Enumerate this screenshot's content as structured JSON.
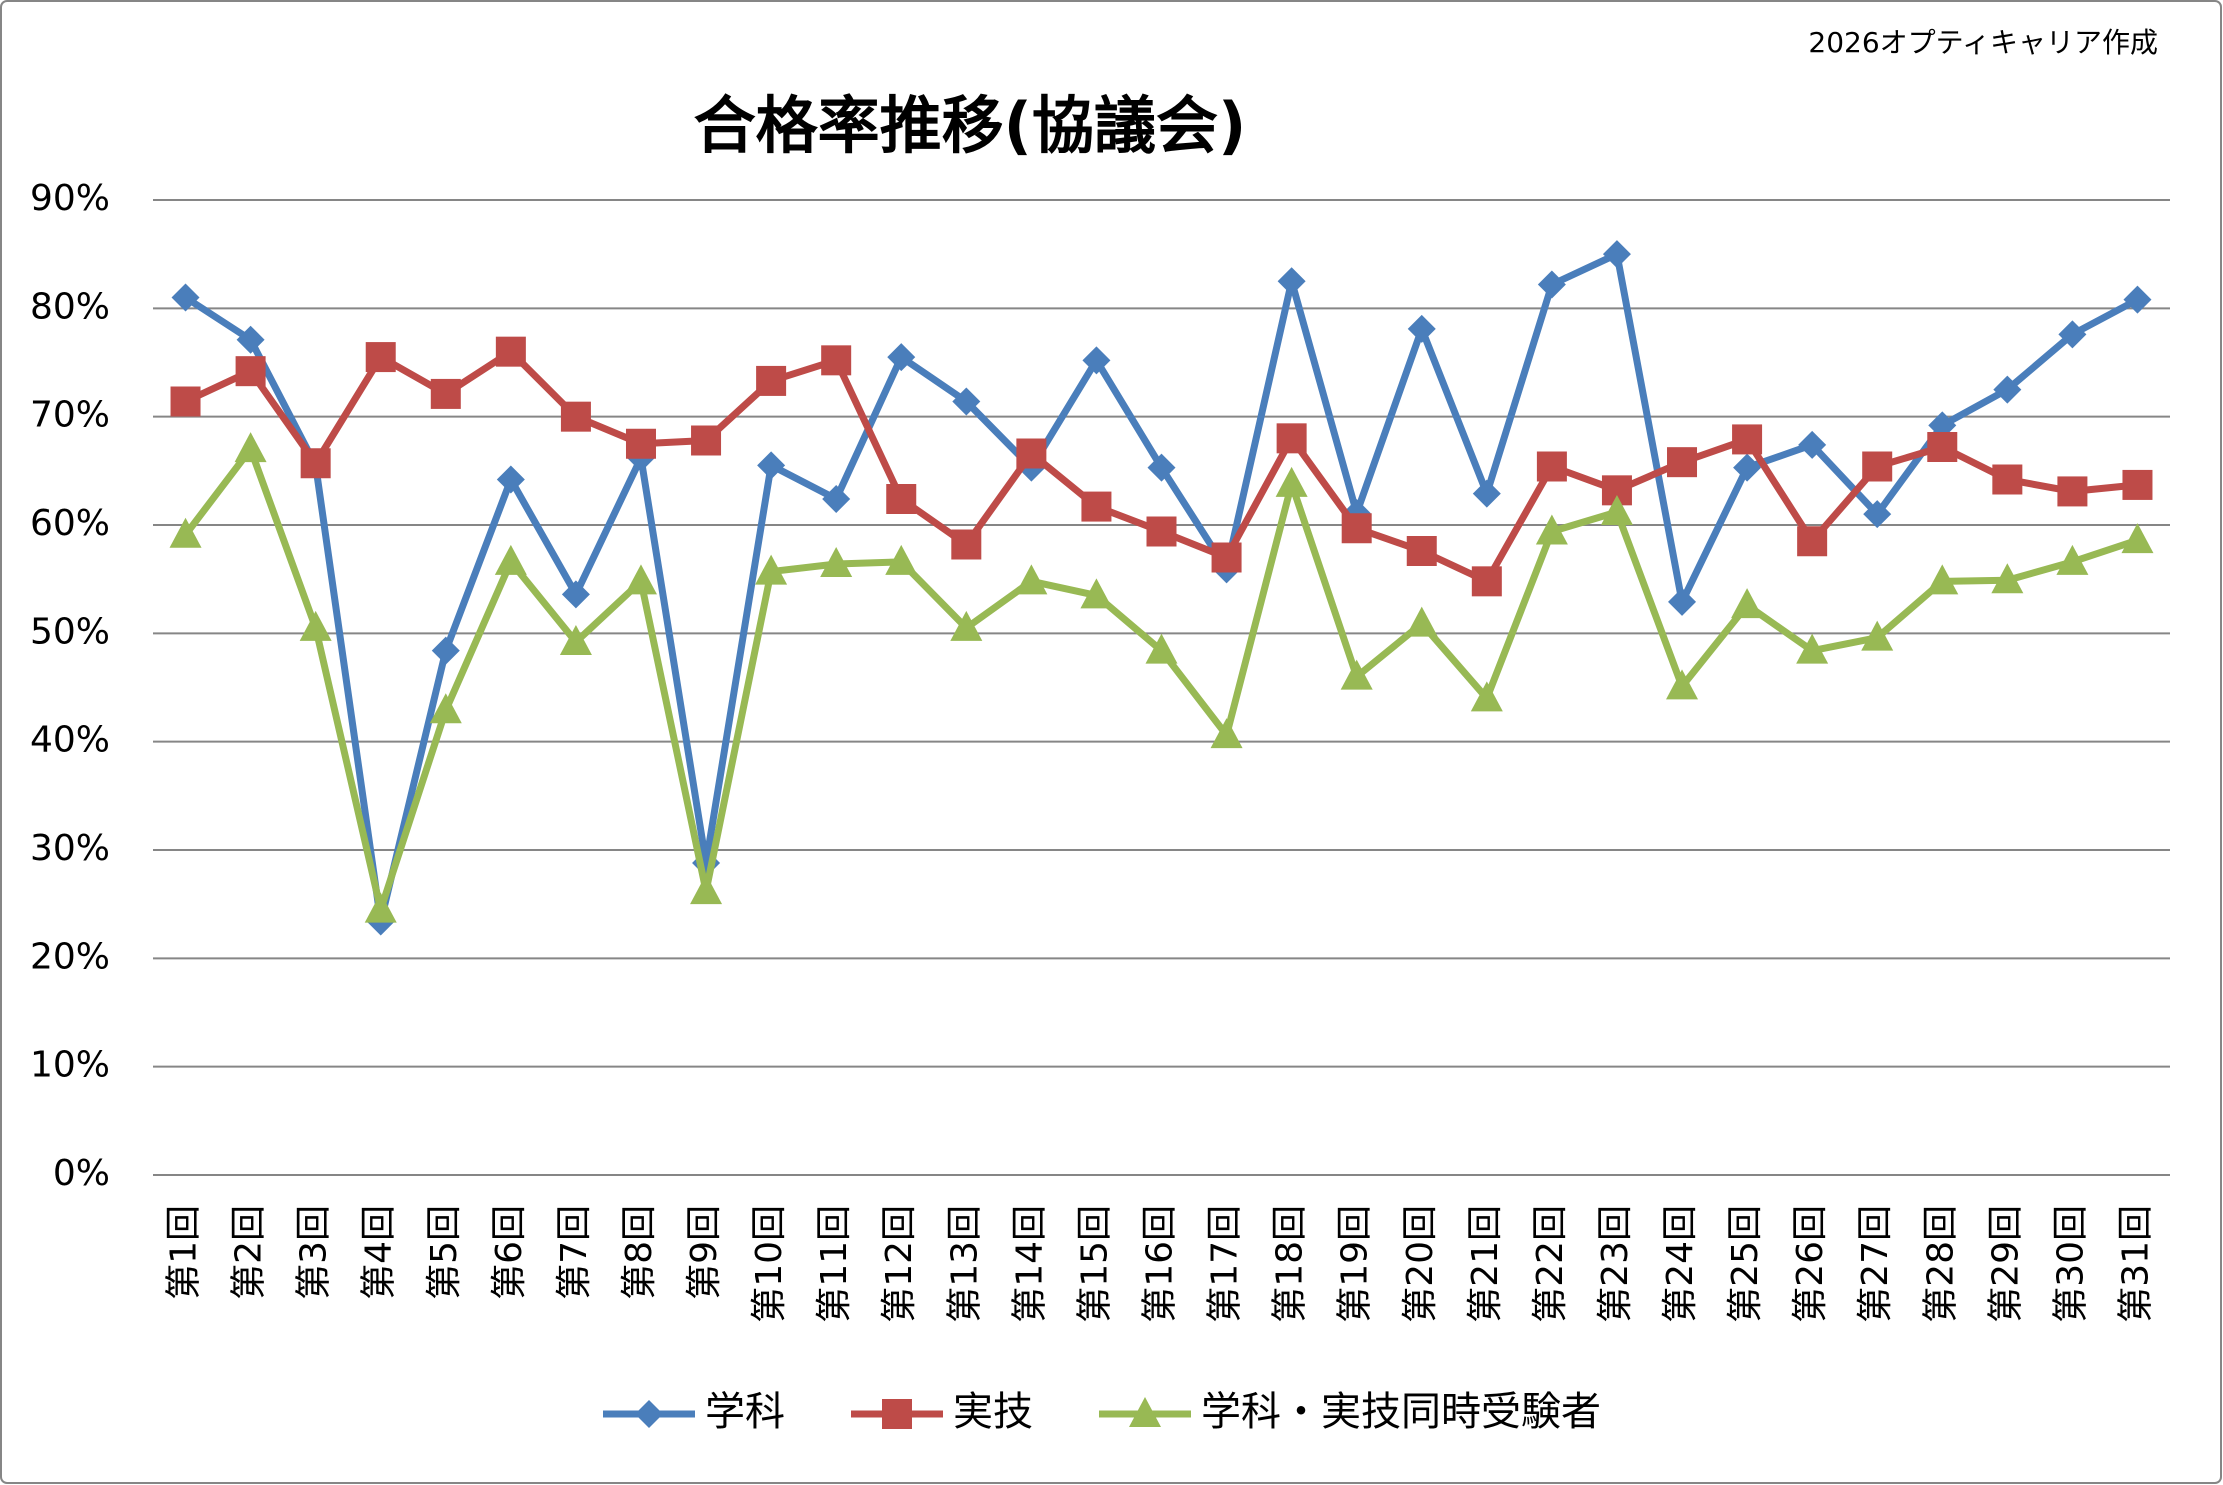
{
  "chart_data": {
    "type": "line",
    "title": "合格率推移(協議会)",
    "note": "2026オプティキャリア作成",
    "categories": [
      "第1回",
      "第2回",
      "第3回",
      "第4回",
      "第5回",
      "第6回",
      "第7回",
      "第8回",
      "第9回",
      "第10回",
      "第11回",
      "第12回",
      "第13回",
      "第14回",
      "第15回",
      "第16回",
      "第17回",
      "第18回",
      "第19回",
      "第20回",
      "第21回",
      "第22回",
      "第23回",
      "第24回",
      "第25回",
      "第26回",
      "第27回",
      "第28回",
      "第29回",
      "第30回",
      "第31回"
    ],
    "series": [
      {
        "name": "学科",
        "color": "#4a7ebb",
        "marker": "diamond",
        "values": [
          81.0,
          77.1,
          65.5,
          23.4,
          48.4,
          64.2,
          53.6,
          66.2,
          28.8,
          65.5,
          62.4,
          75.5,
          71.4,
          65.3,
          75.2,
          65.3,
          55.9,
          82.5,
          61.1,
          78.1,
          62.9,
          82.2,
          85.0,
          52.9,
          65.3,
          67.4,
          61.0,
          69.2,
          72.5,
          77.6,
          80.8
        ]
      },
      {
        "name": "実技",
        "color": "#be4b48",
        "marker": "square",
        "values": [
          71.4,
          74.2,
          65.7,
          75.5,
          72.1,
          76.0,
          70.0,
          67.5,
          67.8,
          73.3,
          75.2,
          62.4,
          58.2,
          66.6,
          61.7,
          59.4,
          57.0,
          68.0,
          59.7,
          57.6,
          54.8,
          65.4,
          63.2,
          65.8,
          67.9,
          58.5,
          65.4,
          67.2,
          64.2,
          63.1,
          63.7
        ]
      },
      {
        "name": "学科・実技同時受験者",
        "color": "#98b954",
        "marker": "triangle",
        "values": [
          59.1,
          67.0,
          50.5,
          24.5,
          42.9,
          56.6,
          49.2,
          54.8,
          26.2,
          55.7,
          56.4,
          56.6,
          50.5,
          54.8,
          53.5,
          48.4,
          40.6,
          63.8,
          46.0,
          50.9,
          44.0,
          59.4,
          61.2,
          45.1,
          52.6,
          48.4,
          49.6,
          54.8,
          54.9,
          56.6,
          58.6
        ]
      }
    ],
    "ylim": [
      0,
      90
    ],
    "yticks": [
      {
        "value": 0,
        "label": "0%"
      },
      {
        "value": 10,
        "label": "10%"
      },
      {
        "value": 20,
        "label": "20%"
      },
      {
        "value": 30,
        "label": "30%"
      },
      {
        "value": 40,
        "label": "40%"
      },
      {
        "value": 50,
        "label": "50%"
      },
      {
        "value": 60,
        "label": "60%"
      },
      {
        "value": 70,
        "label": "70%"
      },
      {
        "value": 80,
        "label": "80%"
      },
      {
        "value": 90,
        "label": "90%"
      }
    ],
    "grid": true,
    "legend": "bottom"
  }
}
